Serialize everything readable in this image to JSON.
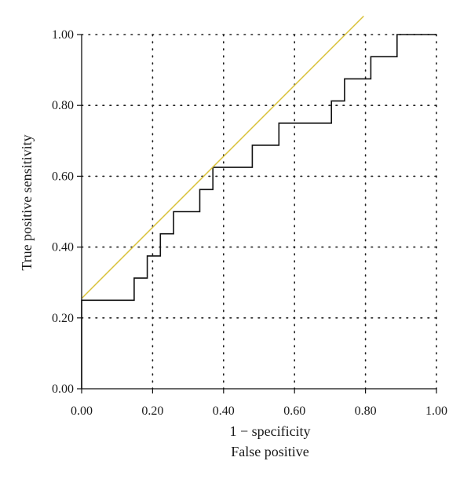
{
  "chart_data": {
    "type": "line",
    "xlabel_lines": [
      "1 − specificity",
      "False positive"
    ],
    "ylabel": "True positive sensitivity",
    "xlim": [
      0,
      1
    ],
    "ylim": [
      0,
      1
    ],
    "x_ticks": [
      0,
      0.2,
      0.4,
      0.6,
      0.8,
      1.0
    ],
    "y_ticks": [
      0,
      0.2,
      0.4,
      0.6,
      0.8,
      1.0
    ],
    "x_tick_labels": [
      "0.00",
      "0.20",
      "0.40",
      "0.60",
      "0.80",
      "1.00"
    ],
    "y_tick_labels": [
      "0.00",
      "0.20",
      "0.40",
      "0.60",
      "0.80",
      "1.00"
    ],
    "grid": true,
    "series": [
      {
        "style": "step",
        "color": "#111111",
        "points": [
          [
            0,
            0
          ],
          [
            0,
            0.25
          ],
          [
            0.148,
            0.25
          ],
          [
            0.148,
            0.3125
          ],
          [
            0.185,
            0.3125
          ],
          [
            0.185,
            0.375
          ],
          [
            0.222,
            0.375
          ],
          [
            0.222,
            0.4375
          ],
          [
            0.259,
            0.4375
          ],
          [
            0.259,
            0.5
          ],
          [
            0.333,
            0.5
          ],
          [
            0.333,
            0.5625
          ],
          [
            0.37,
            0.5625
          ],
          [
            0.37,
            0.625
          ],
          [
            0.481,
            0.625
          ],
          [
            0.481,
            0.6875
          ],
          [
            0.556,
            0.6875
          ],
          [
            0.556,
            0.75
          ],
          [
            0.704,
            0.75
          ],
          [
            0.704,
            0.8125
          ],
          [
            0.741,
            0.8125
          ],
          [
            0.741,
            0.875
          ],
          [
            0.815,
            0.875
          ],
          [
            0.815,
            0.9375
          ],
          [
            0.889,
            0.9375
          ],
          [
            0.889,
            1.0
          ],
          [
            1.0,
            1.0
          ]
        ]
      },
      {
        "style": "line",
        "color": "#d9c23a",
        "points": [
          [
            0,
            0.255
          ],
          [
            0.795,
            1.052
          ]
        ]
      }
    ]
  }
}
